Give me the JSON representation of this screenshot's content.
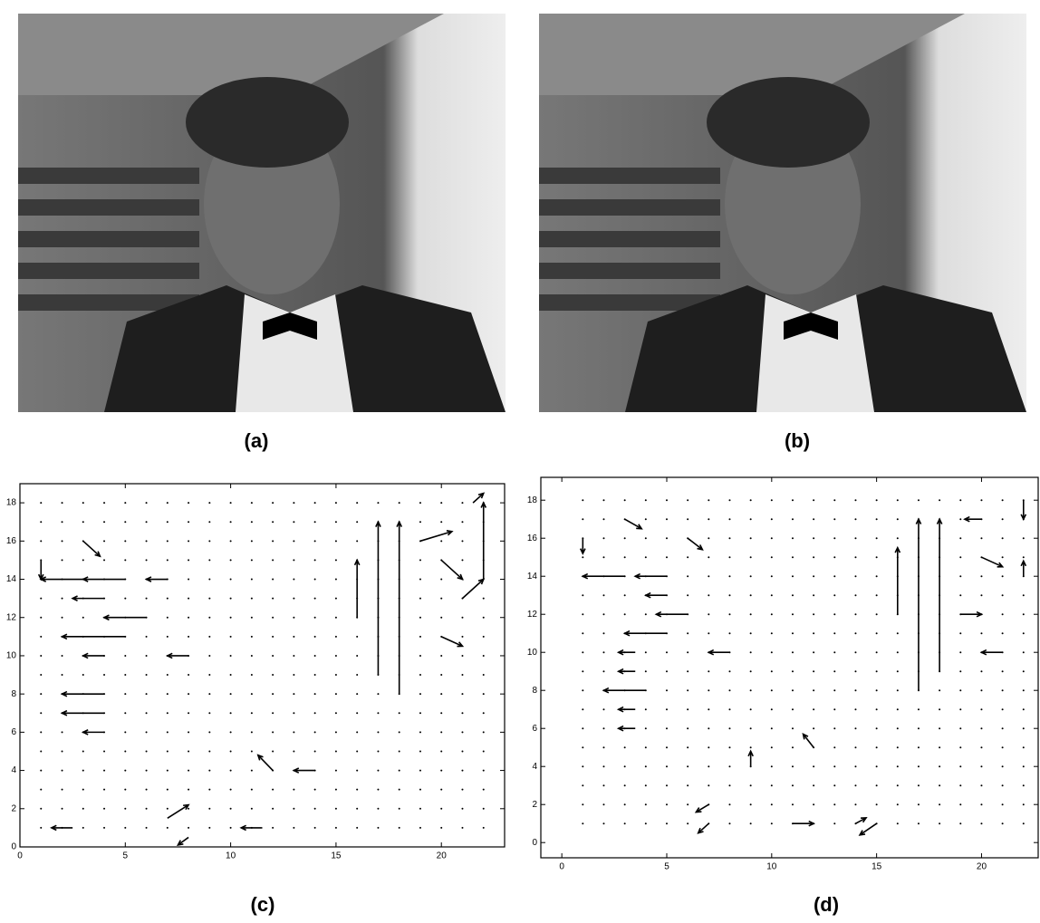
{
  "panels": [
    {
      "caption": "(a)"
    },
    {
      "caption": "(b)"
    }
  ],
  "chart_data": [
    {
      "type": "quiver",
      "caption": "(c)",
      "xlim": [
        0,
        23
      ],
      "ylim": [
        0,
        19
      ],
      "xticks": [
        0,
        5,
        10,
        15,
        20
      ],
      "yticks": [
        0,
        2,
        4,
        6,
        8,
        10,
        12,
        14,
        16,
        18
      ],
      "grid_x": [
        1,
        2,
        3,
        4,
        5,
        6,
        7,
        8,
        9,
        10,
        11,
        12,
        13,
        14,
        15,
        16,
        17,
        18,
        19,
        20,
        21,
        22
      ],
      "grid_y": [
        1,
        2,
        3,
        4,
        5,
        6,
        7,
        8,
        9,
        10,
        11,
        12,
        13,
        14,
        15,
        16,
        17,
        18
      ],
      "arrows": {
        "x": [
          3,
          5,
          7,
          4,
          6,
          5,
          4,
          4,
          4,
          4,
          8,
          17,
          18,
          16,
          22,
          1,
          19,
          20,
          21,
          21.5,
          12,
          7,
          8,
          14,
          11.5,
          2.5,
          3,
          20
        ],
        "y": [
          14,
          14,
          14,
          13,
          12,
          11,
          10,
          8,
          7,
          6,
          10,
          9,
          8,
          12,
          14,
          15,
          16,
          15,
          13,
          18,
          4,
          1.5,
          0.5,
          4,
          1,
          1,
          16,
          11
        ],
        "u": [
          -2,
          -2,
          -1,
          -1.5,
          -2,
          -3,
          -1,
          -2,
          -2,
          -1,
          -1,
          0,
          0,
          0,
          0,
          0,
          1.5,
          1,
          1,
          0.5,
          -0.7,
          1,
          -0.5,
          -1,
          -1,
          -1,
          0.8,
          1
        ],
        "v": [
          0,
          0,
          0,
          0,
          0,
          0,
          0,
          0,
          0,
          0,
          0,
          8,
          9,
          3,
          4,
          -1,
          0.5,
          -1,
          1,
          0.5,
          0.8,
          0.7,
          -0.4,
          0,
          0,
          0,
          -0.8,
          -0.5
        ]
      }
    },
    {
      "type": "quiver",
      "caption": "(d)",
      "xlim": [
        -1,
        22.7
      ],
      "ylim": [
        -0.8,
        19.2
      ],
      "xticks": [
        0,
        5,
        10,
        15,
        20
      ],
      "yticks": [
        0,
        2,
        4,
        6,
        8,
        10,
        12,
        14,
        16,
        18
      ],
      "grid_x": [
        1,
        2,
        3,
        4,
        5,
        6,
        7,
        8,
        9,
        10,
        11,
        12,
        13,
        14,
        15,
        16,
        17,
        18,
        19,
        20,
        21,
        22
      ],
      "grid_y": [
        1,
        2,
        3,
        4,
        5,
        6,
        7,
        8,
        9,
        10,
        11,
        12,
        13,
        14,
        15,
        16,
        17,
        18
      ],
      "arrows": {
        "x": [
          3,
          5,
          5,
          6,
          5,
          8,
          4,
          3.5,
          3.5,
          3.5,
          3.5,
          17,
          18,
          16,
          22,
          22,
          1,
          21,
          20,
          19,
          20,
          7,
          7,
          12,
          9,
          11,
          14,
          15,
          3,
          6
        ],
        "y": [
          14,
          14,
          13,
          12,
          11,
          10,
          8,
          7,
          6,
          9,
          10,
          8,
          9,
          12,
          14,
          18,
          16,
          10,
          15,
          12,
          17,
          2,
          1,
          5,
          4,
          1,
          1,
          1,
          17,
          16
        ],
        "u": [
          -2,
          -1.5,
          -1,
          -1.5,
          -2,
          -1,
          -2,
          -0.8,
          -0.8,
          -0.8,
          -0.8,
          0,
          0,
          0,
          0,
          0,
          0,
          -1,
          1,
          1,
          -0.8,
          -0.6,
          -0.5,
          -0.5,
          0,
          1,
          0.5,
          -0.8,
          0.8,
          0.7
        ],
        "v": [
          0,
          0,
          0,
          0,
          0,
          0,
          0,
          0,
          0,
          0,
          0,
          9,
          8,
          3.5,
          0.8,
          -1,
          -0.8,
          0,
          -0.5,
          0,
          0,
          -0.4,
          -0.5,
          0.7,
          0.8,
          0,
          0.3,
          -0.6,
          -0.5,
          -0.6
        ]
      }
    }
  ]
}
